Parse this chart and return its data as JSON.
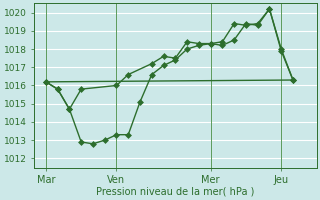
{
  "title": "Pression niveau de la mer( hPa )",
  "bg_color": "#cce8e8",
  "grid_color": "#ffffff",
  "line_color": "#2d6e2d",
  "ylim": [
    1011.5,
    1020.5
  ],
  "yticks": [
    1012,
    1013,
    1014,
    1015,
    1016,
    1017,
    1018,
    1019,
    1020
  ],
  "xtick_labels": [
    "Mar",
    "Ven",
    "Mer",
    "Jeu"
  ],
  "xtick_positions": [
    0,
    3,
    7,
    10
  ],
  "xlim": [
    -0.5,
    11.5
  ],
  "series": [
    {
      "x": [
        0,
        0.5,
        1.0,
        1.5,
        3.0,
        3.5,
        4.5,
        5.0,
        5.5,
        6.0,
        6.5,
        7.0,
        7.5,
        8.0,
        8.5,
        9.0,
        9.5,
        10.0,
        10.5
      ],
      "y": [
        1016.2,
        1015.8,
        1014.7,
        1015.8,
        1016.0,
        1016.6,
        1017.2,
        1017.6,
        1017.5,
        1018.4,
        1018.3,
        1018.3,
        1018.4,
        1019.4,
        1019.3,
        1019.4,
        1020.2,
        1018.0,
        1016.3
      ],
      "has_markers": true
    },
    {
      "x": [
        0,
        0.5,
        1.0,
        1.5,
        2.0,
        2.5,
        3.0,
        3.5,
        4.0,
        4.5,
        5.0,
        5.5,
        6.0,
        6.5,
        7.0,
        7.5,
        8.0,
        8.5,
        9.0,
        9.5,
        10.0,
        10.5
      ],
      "y": [
        1016.2,
        1015.8,
        1014.7,
        1012.9,
        1012.8,
        1013.0,
        1013.3,
        1013.3,
        1015.1,
        1016.6,
        1017.1,
        1017.4,
        1018.0,
        1018.2,
        1018.3,
        1018.2,
        1018.5,
        1019.4,
        1019.3,
        1020.2,
        1017.9,
        1016.3
      ],
      "has_markers": true
    },
    {
      "x": [
        0,
        10.5
      ],
      "y": [
        1016.2,
        1016.3
      ],
      "has_markers": false
    }
  ]
}
